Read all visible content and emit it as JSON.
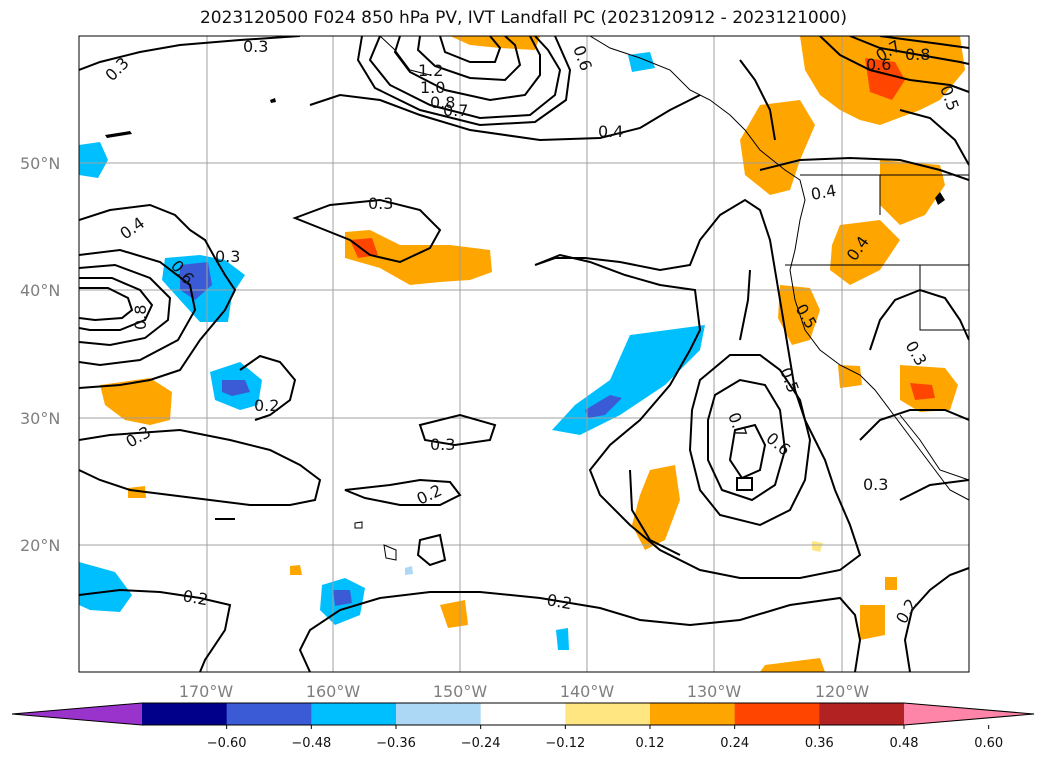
{
  "title": "2023120500 F024 850 hPa PV, IVT Landfall PC (2023120912 - 2023121000)",
  "map": {
    "lat_labels": [
      "50°N",
      "40°N",
      "30°N",
      "20°N"
    ],
    "lon_labels": [
      "170°W",
      "160°W",
      "150°W",
      "140°W",
      "130°W",
      "120°W"
    ],
    "contour_labels": [
      "0.3",
      "0.3",
      "0.3",
      "0.3",
      "0.3",
      "0.3",
      "0.3",
      "0.3",
      "0.2",
      "0.2",
      "0.2",
      "0.2",
      "0.2",
      "0.4",
      "0.4",
      "0.4",
      "0.4",
      "0.5",
      "0.5",
      "0.6",
      "0.6",
      "0.6",
      "0.7",
      "0.7",
      "0.7",
      "0.8",
      "0.8",
      "1.0",
      "1.2",
      "0.5",
      "0.6",
      "0.8"
    ]
  },
  "colorbar": {
    "ticks": [
      "−0.60",
      "−0.48",
      "−0.36",
      "−0.24",
      "−0.12",
      "0.12",
      "0.24",
      "0.36",
      "0.48",
      "0.60"
    ],
    "colors": [
      "#9933cc",
      "#00008b",
      "#3b5bd6",
      "#00bfff",
      "#add8f5",
      "#ffffff",
      "#ffe680",
      "#ffa500",
      "#ff4500",
      "#b22222",
      "#ff85a8"
    ]
  }
}
